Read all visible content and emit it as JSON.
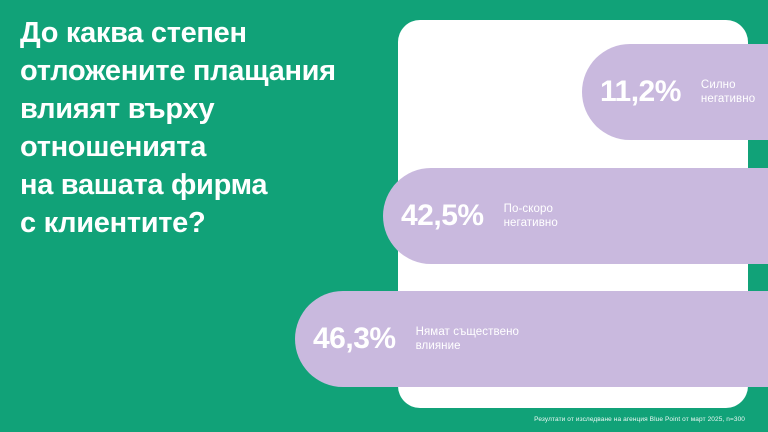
{
  "colors": {
    "background": "#11A278",
    "card": "#FFFFFF",
    "bar": "#C9B9DE",
    "text": "#FFFFFF"
  },
  "title": {
    "text": "До каква степен\nотложените плащания\nвлияят върху\nотношенията\nна вашата фирма\nс клиентите?"
  },
  "bars": [
    {
      "value": "11,2%",
      "label": "Силно\nнегативно"
    },
    {
      "value": "42,5%",
      "label": "По-скоро\nнегативно"
    },
    {
      "value": "46,3%",
      "label": "Нямат съществено\nвлияние"
    }
  ],
  "footnote": "Резултати от изследване на агенция Blue Point от март 2025, n=300",
  "chart_data": {
    "type": "bar",
    "orientation": "horizontal",
    "title": "До каква степен отложените плащания влияят върху отношенията на вашата фирма с клиентите?",
    "categories": [
      "Силно негативно",
      "По-скоро негативно",
      "Нямат съществено влияние"
    ],
    "values": [
      11.2,
      42.5,
      46.3
    ],
    "value_labels": [
      "11,2%",
      "42,5%",
      "46,3%"
    ],
    "unit": "%",
    "legend": false,
    "grid": false,
    "bar_color": "#C9B9DE",
    "background_color": "#11A278",
    "source_note": "Резултати от изследване на агенция Blue Point от март 2025, n=300"
  }
}
